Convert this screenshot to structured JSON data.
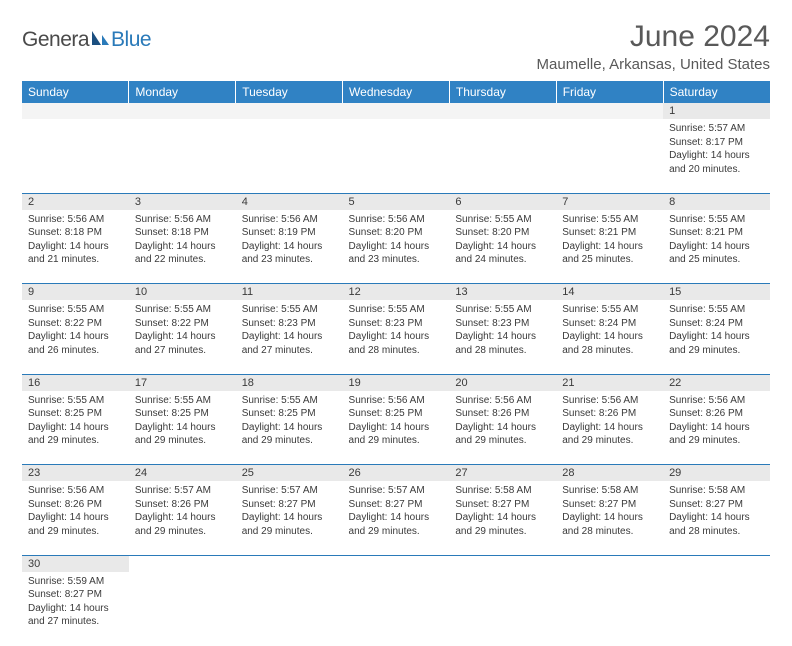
{
  "logo": {
    "text1": "Genera",
    "text2": "Blue"
  },
  "title": "June 2024",
  "location": "Maumelle, Arkansas, United States",
  "colors": {
    "header_bg": "#3082c4",
    "header_text": "#ffffff",
    "border": "#2a7ab9",
    "daynum_bg": "#e9e9e9",
    "blank_bg": "#f4f4f4",
    "text": "#3a3a3a",
    "title_text": "#595959"
  },
  "weekdays": [
    "Sunday",
    "Monday",
    "Tuesday",
    "Wednesday",
    "Thursday",
    "Friday",
    "Saturday"
  ],
  "weeks": [
    [
      null,
      null,
      null,
      null,
      null,
      null,
      {
        "n": "1",
        "sr": "5:57 AM",
        "ss": "8:17 PM",
        "dl": "14 hours and 20 minutes."
      }
    ],
    [
      {
        "n": "2",
        "sr": "5:56 AM",
        "ss": "8:18 PM",
        "dl": "14 hours and 21 minutes."
      },
      {
        "n": "3",
        "sr": "5:56 AM",
        "ss": "8:18 PM",
        "dl": "14 hours and 22 minutes."
      },
      {
        "n": "4",
        "sr": "5:56 AM",
        "ss": "8:19 PM",
        "dl": "14 hours and 23 minutes."
      },
      {
        "n": "5",
        "sr": "5:56 AM",
        "ss": "8:20 PM",
        "dl": "14 hours and 23 minutes."
      },
      {
        "n": "6",
        "sr": "5:55 AM",
        "ss": "8:20 PM",
        "dl": "14 hours and 24 minutes."
      },
      {
        "n": "7",
        "sr": "5:55 AM",
        "ss": "8:21 PM",
        "dl": "14 hours and 25 minutes."
      },
      {
        "n": "8",
        "sr": "5:55 AM",
        "ss": "8:21 PM",
        "dl": "14 hours and 25 minutes."
      }
    ],
    [
      {
        "n": "9",
        "sr": "5:55 AM",
        "ss": "8:22 PM",
        "dl": "14 hours and 26 minutes."
      },
      {
        "n": "10",
        "sr": "5:55 AM",
        "ss": "8:22 PM",
        "dl": "14 hours and 27 minutes."
      },
      {
        "n": "11",
        "sr": "5:55 AM",
        "ss": "8:23 PM",
        "dl": "14 hours and 27 minutes."
      },
      {
        "n": "12",
        "sr": "5:55 AM",
        "ss": "8:23 PM",
        "dl": "14 hours and 28 minutes."
      },
      {
        "n": "13",
        "sr": "5:55 AM",
        "ss": "8:23 PM",
        "dl": "14 hours and 28 minutes."
      },
      {
        "n": "14",
        "sr": "5:55 AM",
        "ss": "8:24 PM",
        "dl": "14 hours and 28 minutes."
      },
      {
        "n": "15",
        "sr": "5:55 AM",
        "ss": "8:24 PM",
        "dl": "14 hours and 29 minutes."
      }
    ],
    [
      {
        "n": "16",
        "sr": "5:55 AM",
        "ss": "8:25 PM",
        "dl": "14 hours and 29 minutes."
      },
      {
        "n": "17",
        "sr": "5:55 AM",
        "ss": "8:25 PM",
        "dl": "14 hours and 29 minutes."
      },
      {
        "n": "18",
        "sr": "5:55 AM",
        "ss": "8:25 PM",
        "dl": "14 hours and 29 minutes."
      },
      {
        "n": "19",
        "sr": "5:56 AM",
        "ss": "8:25 PM",
        "dl": "14 hours and 29 minutes."
      },
      {
        "n": "20",
        "sr": "5:56 AM",
        "ss": "8:26 PM",
        "dl": "14 hours and 29 minutes."
      },
      {
        "n": "21",
        "sr": "5:56 AM",
        "ss": "8:26 PM",
        "dl": "14 hours and 29 minutes."
      },
      {
        "n": "22",
        "sr": "5:56 AM",
        "ss": "8:26 PM",
        "dl": "14 hours and 29 minutes."
      }
    ],
    [
      {
        "n": "23",
        "sr": "5:56 AM",
        "ss": "8:26 PM",
        "dl": "14 hours and 29 minutes."
      },
      {
        "n": "24",
        "sr": "5:57 AM",
        "ss": "8:26 PM",
        "dl": "14 hours and 29 minutes."
      },
      {
        "n": "25",
        "sr": "5:57 AM",
        "ss": "8:27 PM",
        "dl": "14 hours and 29 minutes."
      },
      {
        "n": "26",
        "sr": "5:57 AM",
        "ss": "8:27 PM",
        "dl": "14 hours and 29 minutes."
      },
      {
        "n": "27",
        "sr": "5:58 AM",
        "ss": "8:27 PM",
        "dl": "14 hours and 29 minutes."
      },
      {
        "n": "28",
        "sr": "5:58 AM",
        "ss": "8:27 PM",
        "dl": "14 hours and 28 minutes."
      },
      {
        "n": "29",
        "sr": "5:58 AM",
        "ss": "8:27 PM",
        "dl": "14 hours and 28 minutes."
      }
    ],
    [
      {
        "n": "30",
        "sr": "5:59 AM",
        "ss": "8:27 PM",
        "dl": "14 hours and 27 minutes."
      },
      null,
      null,
      null,
      null,
      null,
      null
    ]
  ],
  "labels": {
    "sunrise": "Sunrise:",
    "sunset": "Sunset:",
    "daylight": "Daylight:"
  }
}
